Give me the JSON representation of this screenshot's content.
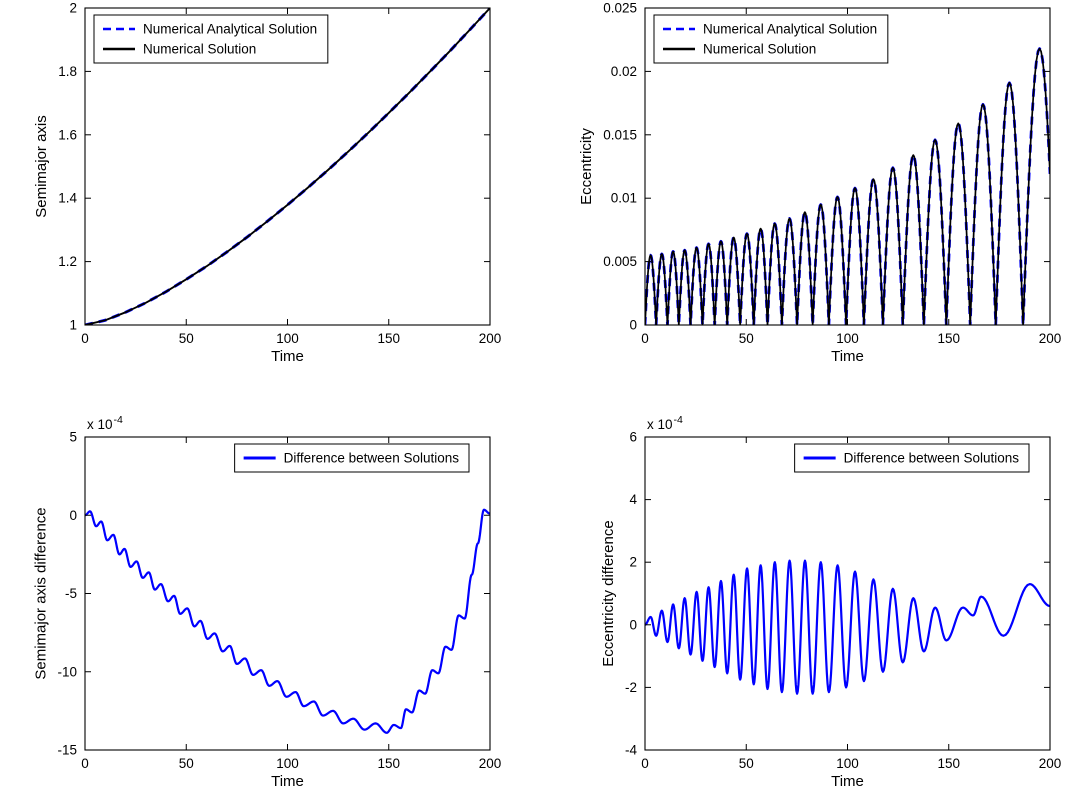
{
  "figure": {
    "background": "#ffffff",
    "line_color_analytical": "#0000ff",
    "line_color_numerical": "#000000",
    "line_color_difference": "#0000ff"
  },
  "chart_data": [
    {
      "id": "semimajor-axis",
      "type": "line",
      "title": "",
      "xlabel": "Time",
      "ylabel": "Semimajor axis",
      "xlim": [
        0,
        200
      ],
      "ylim": [
        1,
        2
      ],
      "xticks": [
        0,
        50,
        100,
        150,
        200
      ],
      "xtick_labels": [
        "0",
        "50",
        "100",
        "150",
        "200"
      ],
      "yticks": [
        1,
        1.2,
        1.4,
        1.6,
        1.8,
        2
      ],
      "ytick_labels": [
        "1",
        "1.2",
        "1.4",
        "1.6",
        "1.8",
        "2"
      ],
      "grid": false,
      "legend": {
        "position": "northwest",
        "entries": [
          {
            "label": "Numerical Analytical Solution",
            "color": "#0000ff",
            "dashed": true,
            "sample_width": 2.5
          },
          {
            "label": "Numerical Solution",
            "color": "#000000",
            "dashed": false,
            "sample_width": 2.5
          }
        ]
      },
      "series": [
        {
          "name": "Numerical Analytical Solution",
          "mode": "points",
          "color": "#0000ff",
          "dashed": true,
          "width": 3,
          "x": [
            0,
            10,
            20,
            30,
            40,
            50,
            60,
            70,
            80,
            90,
            100,
            110,
            120,
            130,
            140,
            150,
            160,
            170,
            180,
            190,
            200
          ],
          "y": [
            1.0,
            1.015,
            1.04,
            1.07,
            1.105,
            1.144,
            1.185,
            1.23,
            1.277,
            1.327,
            1.379,
            1.433,
            1.489,
            1.547,
            1.607,
            1.669,
            1.732,
            1.797,
            1.863,
            1.931,
            2.0
          ]
        },
        {
          "name": "Numerical Solution",
          "mode": "points",
          "color": "#000000",
          "dashed": false,
          "width": 1.9,
          "x": [
            0,
            10,
            20,
            30,
            40,
            50,
            60,
            70,
            80,
            90,
            100,
            110,
            120,
            130,
            140,
            150,
            160,
            170,
            180,
            190,
            200
          ],
          "y": [
            1.0,
            1.015,
            1.04,
            1.07,
            1.105,
            1.144,
            1.185,
            1.23,
            1.277,
            1.327,
            1.379,
            1.433,
            1.489,
            1.547,
            1.607,
            1.669,
            1.732,
            1.797,
            1.863,
            1.931,
            2.0
          ]
        }
      ]
    },
    {
      "id": "eccentricity",
      "type": "line",
      "title": "",
      "xlabel": "Time",
      "ylabel": "Eccentricity",
      "xlim": [
        0,
        200
      ],
      "ylim": [
        0,
        0.025
      ],
      "xticks": [
        0,
        50,
        100,
        150,
        200
      ],
      "xtick_labels": [
        "0",
        "50",
        "100",
        "150",
        "200"
      ],
      "yticks": [
        0,
        0.005,
        0.01,
        0.015,
        0.02,
        0.025
      ],
      "ytick_labels": [
        "0",
        "0.005",
        "0.01",
        "0.015",
        "0.02",
        "0.025"
      ],
      "grid": false,
      "legend": {
        "position": "northwest",
        "entries": [
          {
            "label": "Numerical Analytical Solution",
            "color": "#0000ff",
            "dashed": true,
            "sample_width": 2.5
          },
          {
            "label": "Numerical Solution",
            "color": "#000000",
            "dashed": false,
            "sample_width": 2.5
          }
        ]
      },
      "series": [
        {
          "name": "Numerical Analytical Solution",
          "mode": "arches",
          "color": "#0000ff",
          "dashed": true,
          "width": 2.8,
          "zeros": [
            0,
            5.5,
            11.1,
            16.7,
            22.5,
            28.4,
            34.4,
            40.6,
            47.0,
            53.7,
            60.5,
            67.6,
            75.1,
            82.8,
            90.8,
            99.3,
            108.1,
            117.5,
            127.3,
            137.7,
            148.8,
            160.6,
            173.2,
            186.7,
            203.0
          ],
          "peaks": [
            0.0055,
            0.0056,
            0.0058,
            0.0059,
            0.0061,
            0.0064,
            0.0066,
            0.0069,
            0.0072,
            0.0076,
            0.008,
            0.0084,
            0.0089,
            0.0095,
            0.0101,
            0.0108,
            0.0115,
            0.0124,
            0.0134,
            0.0146,
            0.0159,
            0.0174,
            0.0191,
            0.0218
          ]
        },
        {
          "name": "Numerical Solution",
          "mode": "arches",
          "color": "#000000",
          "dashed": false,
          "width": 1.7,
          "zeros": [
            0,
            5.5,
            11.1,
            16.7,
            22.5,
            28.4,
            34.4,
            40.6,
            47.0,
            53.7,
            60.5,
            67.6,
            75.1,
            82.8,
            90.8,
            99.3,
            108.1,
            117.5,
            127.3,
            137.7,
            148.8,
            160.6,
            173.2,
            186.7,
            203.0
          ],
          "peaks": [
            0.0055,
            0.0056,
            0.0058,
            0.0059,
            0.0061,
            0.0064,
            0.0066,
            0.0069,
            0.0072,
            0.0076,
            0.008,
            0.0084,
            0.0089,
            0.0095,
            0.0101,
            0.0108,
            0.0115,
            0.0124,
            0.0134,
            0.0146,
            0.0159,
            0.0174,
            0.0191,
            0.0218
          ]
        }
      ]
    },
    {
      "id": "semimajor-axis-difference",
      "type": "line",
      "title": "",
      "xlabel": "Time",
      "ylabel": "Semimajor axis difference",
      "xlim": [
        0,
        200
      ],
      "ylim": [
        -15,
        5
      ],
      "xticks": [
        0,
        50,
        100,
        150,
        200
      ],
      "xtick_labels": [
        "0",
        "50",
        "100",
        "150",
        "200"
      ],
      "yticks": [
        -15,
        -10,
        -5,
        0,
        5
      ],
      "ytick_labels": [
        "-15",
        "-10",
        "-5",
        "0",
        "5"
      ],
      "y_exponent": {
        "prefix": "x 10",
        "power": "-4"
      },
      "y_values_unit": "1e-4",
      "grid": false,
      "legend": {
        "position": "northeast",
        "entries": [
          {
            "label": "Difference between Solutions",
            "color": "#0000ff",
            "dashed": false,
            "sample_width": 3
          }
        ]
      },
      "series": [
        {
          "name": "Difference between Solutions",
          "mode": "extrema",
          "color": "#0000ff",
          "dashed": false,
          "width": 2.2,
          "x": [
            0,
            2.5,
            5.5,
            8,
            11,
            14,
            17,
            19.5,
            22.5,
            25.5,
            28.5,
            31.5,
            34.5,
            37.5,
            41,
            44,
            47,
            50.5,
            54,
            57,
            60.5,
            64,
            68,
            71.5,
            75,
            79,
            83,
            87,
            91,
            95,
            99.5,
            104,
            108,
            113,
            117.5,
            122.5,
            127.5,
            132.5,
            138,
            143.5,
            149,
            152.5,
            156,
            158.5,
            161.5,
            165,
            168,
            171.5,
            174.5,
            178,
            181,
            184.5,
            187.5,
            191,
            194,
            197,
            200
          ],
          "y": [
            0,
            0.25,
            -0.7,
            -0.4,
            -1.6,
            -1.25,
            -2.5,
            -2.15,
            -3.3,
            -2.95,
            -4.0,
            -3.65,
            -4.75,
            -4.4,
            -5.5,
            -5.15,
            -6.3,
            -5.95,
            -7.1,
            -6.75,
            -7.9,
            -7.55,
            -8.7,
            -8.35,
            -9.5,
            -9.15,
            -10.2,
            -9.9,
            -10.9,
            -10.6,
            -11.6,
            -11.3,
            -12.2,
            -11.9,
            -12.8,
            -12.5,
            -13.3,
            -13.0,
            -13.7,
            -13.3,
            -13.9,
            -13.4,
            -13.6,
            -12.4,
            -12.6,
            -11.2,
            -11.4,
            -9.9,
            -10.1,
            -8.4,
            -8.6,
            -6.4,
            -6.6,
            -3.8,
            -1.8,
            0.35,
            0.1
          ]
        }
      ]
    },
    {
      "id": "eccentricity-difference",
      "type": "line",
      "title": "",
      "xlabel": "Time",
      "ylabel": "Eccentricity difference",
      "xlim": [
        0,
        200
      ],
      "ylim": [
        -4,
        6
      ],
      "xticks": [
        0,
        50,
        100,
        150,
        200
      ],
      "xtick_labels": [
        "0",
        "50",
        "100",
        "150",
        "200"
      ],
      "yticks": [
        -4,
        -2,
        0,
        2,
        4,
        6
      ],
      "ytick_labels": [
        "-4",
        "-2",
        "0",
        "2",
        "4",
        "6"
      ],
      "y_exponent": {
        "prefix": "x 10",
        "power": "-4"
      },
      "y_values_unit": "1e-4",
      "grid": false,
      "legend": {
        "position": "northeast",
        "entries": [
          {
            "label": "Difference between Solutions",
            "color": "#0000ff",
            "dashed": false,
            "sample_width": 3
          }
        ]
      },
      "series": [
        {
          "name": "Difference between Solutions",
          "mode": "extrema",
          "color": "#0000ff",
          "dashed": false,
          "width": 2.2,
          "x": [
            0,
            2.8,
            5.5,
            8.3,
            11.1,
            13.9,
            16.7,
            19.6,
            22.5,
            25.5,
            28.4,
            31.4,
            34.4,
            37.5,
            40.6,
            43.8,
            47,
            50.4,
            53.7,
            57.1,
            60.5,
            64.1,
            67.6,
            71.4,
            75.1,
            79,
            82.8,
            86.8,
            90.8,
            95.1,
            99.3,
            103.7,
            108.1,
            112.8,
            117.5,
            122.4,
            127.3,
            132.5,
            137.7,
            143.3,
            148.8,
            157,
            162,
            166,
            177,
            190,
            200
          ],
          "y": [
            0,
            0.25,
            -0.35,
            0.45,
            -0.55,
            0.65,
            -0.75,
            0.85,
            -0.95,
            1.05,
            -1.15,
            1.2,
            -1.35,
            1.4,
            -1.55,
            1.6,
            -1.75,
            1.8,
            -1.9,
            1.9,
            -2.05,
            2.0,
            -2.15,
            2.05,
            -2.2,
            2.05,
            -2.2,
            2.0,
            -2.15,
            1.9,
            -2.0,
            1.7,
            -1.8,
            1.45,
            -1.5,
            1.15,
            -1.2,
            0.85,
            -0.85,
            0.55,
            -0.5,
            0.55,
            0.3,
            0.9,
            -0.35,
            1.3,
            0.6
          ]
        }
      ]
    }
  ]
}
